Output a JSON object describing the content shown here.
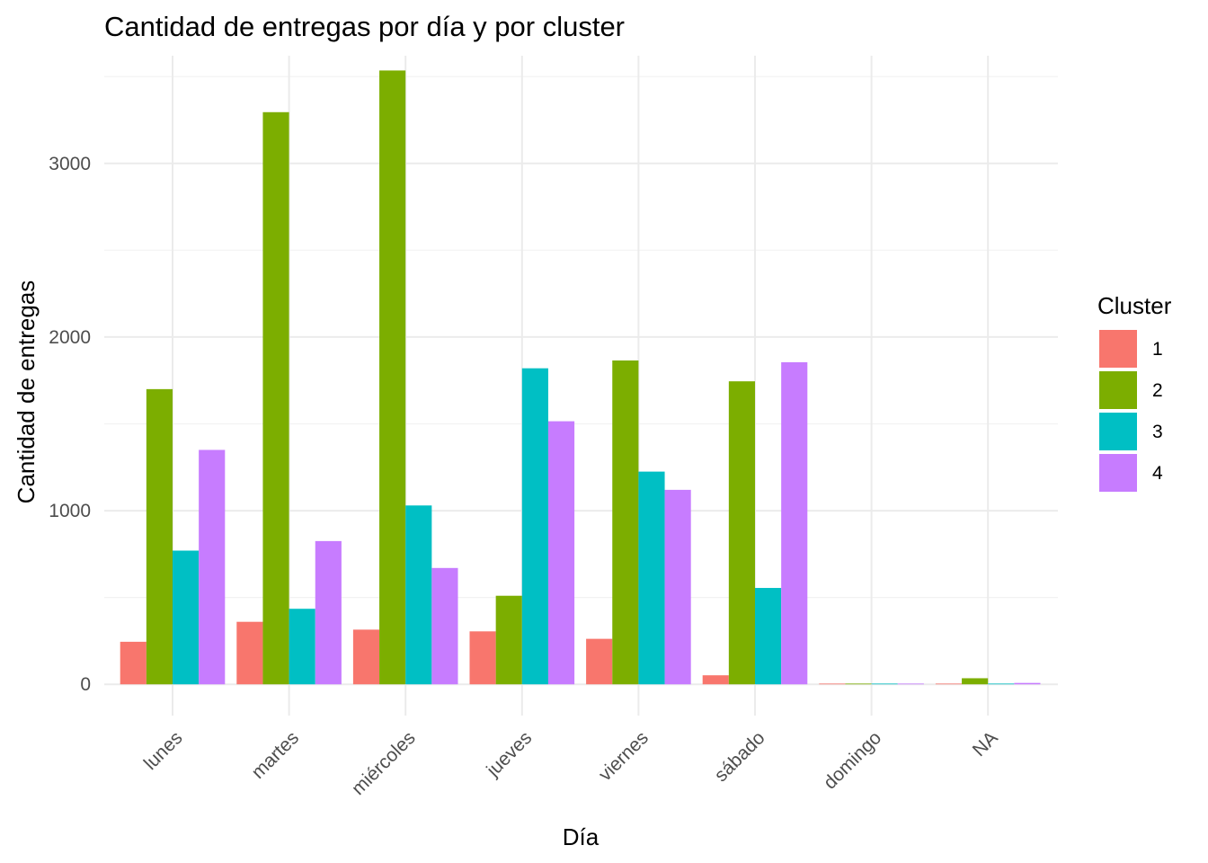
{
  "chart_data": {
    "type": "bar",
    "title": "Cantidad de entregas por día y por cluster",
    "xlabel": "Día",
    "ylabel": "Cantidad de entregas",
    "categories": [
      "lunes",
      "martes",
      "miércoles",
      "jueves",
      "viernes",
      "sábado",
      "domingo",
      "NA"
    ],
    "ylim": [
      -180,
      3620
    ],
    "yticks": [
      0,
      1000,
      2000,
      3000
    ],
    "legend": {
      "title": "Cluster",
      "position": "right"
    },
    "grid": true,
    "series": [
      {
        "name": "1",
        "color": "#F8766D",
        "values": [
          245,
          360,
          315,
          305,
          262,
          52,
          2,
          4
        ]
      },
      {
        "name": "2",
        "color": "#7CAE00",
        "values": [
          1700,
          3295,
          3535,
          510,
          1865,
          1745,
          2,
          35
        ]
      },
      {
        "name": "3",
        "color": "#00BFC4",
        "values": [
          770,
          435,
          1030,
          1820,
          1225,
          555,
          2,
          3
        ]
      },
      {
        "name": "4",
        "color": "#C77CFF",
        "values": [
          1350,
          825,
          670,
          1515,
          1120,
          1855,
          2,
          8
        ]
      }
    ]
  }
}
